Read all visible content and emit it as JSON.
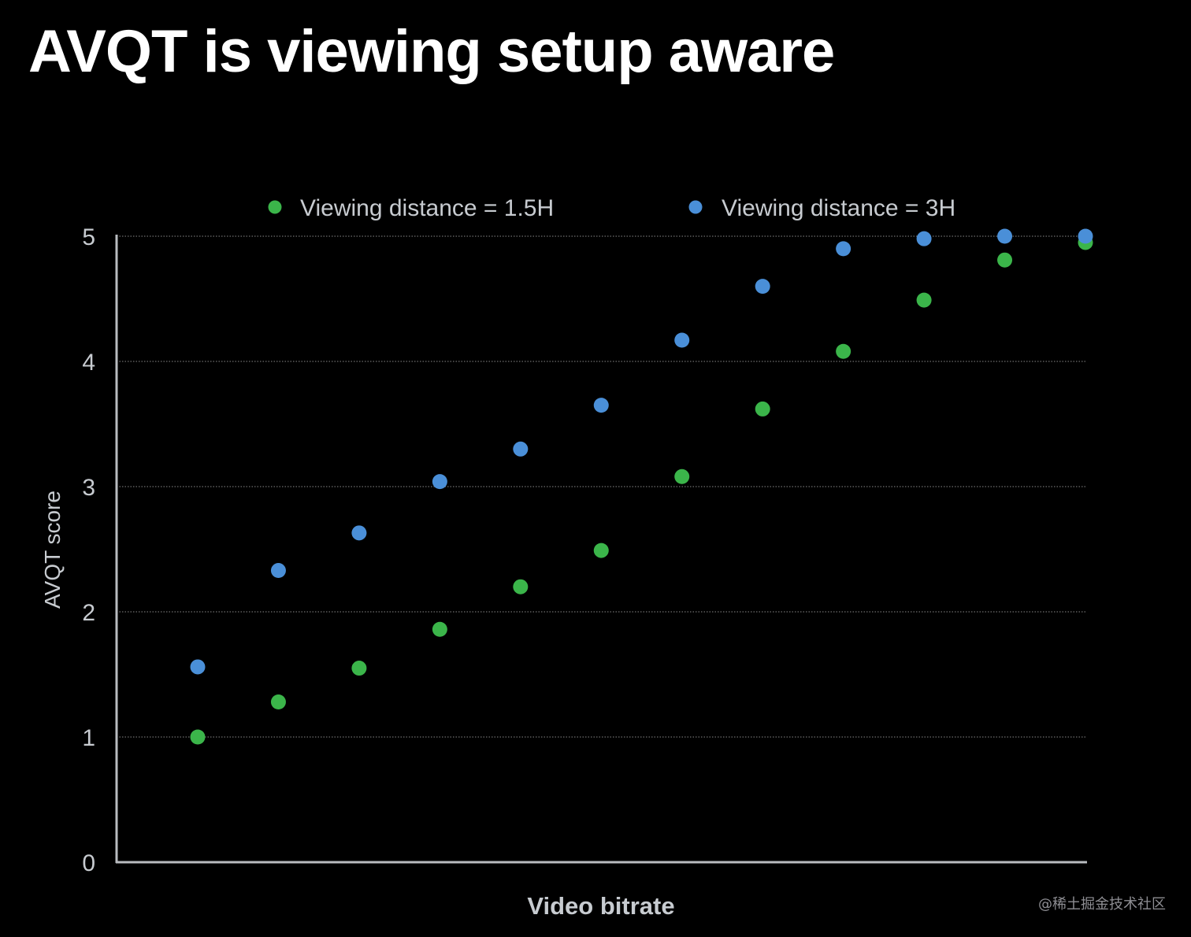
{
  "slide": {
    "title": "AVQT is viewing setup aware",
    "watermark": "@稀土掘金技术社区"
  },
  "colors": {
    "background": "#000000",
    "series_green": "#3bb54a",
    "series_blue": "#4a8fd8",
    "axis": "#b9bcc0",
    "grid": "#8a8a8a",
    "label": "#c7cbd0"
  },
  "chart_data": {
    "type": "scatter",
    "title": "",
    "xlabel": "Video bitrate",
    "ylabel": "AVQT score",
    "ylim": [
      0,
      5
    ],
    "yticks": [
      "0",
      "1",
      "2",
      "3",
      "4",
      "5"
    ],
    "x": [
      1,
      2,
      3,
      4,
      5,
      6,
      7,
      8,
      9,
      10,
      11,
      12
    ],
    "xlim": [
      0,
      12
    ],
    "grid": true,
    "legend_position": "top",
    "series": [
      {
        "name": "Viewing distance = 1.5H",
        "color": "#3bb54a",
        "values": [
          1.0,
          1.28,
          1.55,
          1.86,
          2.2,
          2.49,
          3.08,
          3.62,
          4.08,
          4.49,
          4.81,
          4.95
        ]
      },
      {
        "name": "Viewing distance = 3H",
        "color": "#4a8fd8",
        "values": [
          1.56,
          2.33,
          2.63,
          3.04,
          3.3,
          3.65,
          4.17,
          4.6,
          4.9,
          4.98,
          5.0,
          5.0
        ]
      }
    ]
  }
}
